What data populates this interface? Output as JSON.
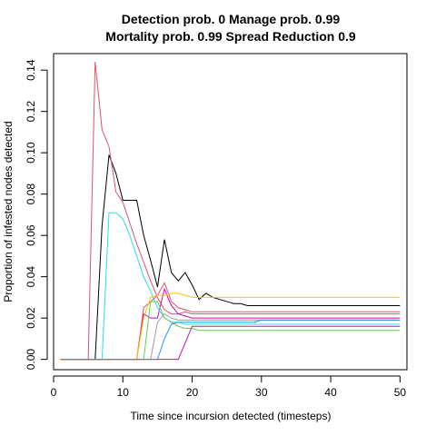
{
  "chart_data": {
    "type": "line",
    "title_lines": [
      "Detection prob. 0 Manage prob. 0.99",
      "Mortality prob. 0.99 Spread Reduction 0.9"
    ],
    "xlabel": "Time since incursion detected (timesteps)",
    "ylabel": "Proportion of infested nodes detected",
    "xlim": [
      0,
      51
    ],
    "ylim": [
      -0.005,
      0.148
    ],
    "xticks": [
      0,
      10,
      20,
      30,
      40,
      50
    ],
    "yticks": [
      0.0,
      0.02,
      0.04,
      0.06,
      0.08,
      0.1,
      0.12,
      0.14
    ],
    "ytick_labels": [
      "0.00",
      "0.02",
      "0.04",
      "0.06",
      "0.08",
      "0.10",
      "0.12",
      "0.14"
    ],
    "grid": false,
    "legend": "none",
    "series": [
      {
        "color": "#000000",
        "x": [
          1,
          6,
          7,
          8,
          9,
          10,
          11,
          12,
          13,
          14,
          15,
          16,
          17,
          18,
          19,
          20,
          21,
          22,
          23,
          24,
          25,
          26,
          27,
          28,
          29,
          30,
          50
        ],
        "y": [
          0,
          0,
          0.065,
          0.099,
          0.09,
          0.077,
          0.077,
          0.077,
          0.06,
          0.048,
          0.035,
          0.058,
          0.042,
          0.038,
          0.042,
          0.036,
          0.029,
          0.032,
          0.03,
          0.029,
          0.028,
          0.027,
          0.027,
          0.026,
          0.026,
          0.026,
          0.026
        ]
      },
      {
        "color": "#DF536B",
        "x": [
          1,
          5,
          6,
          7,
          8,
          9,
          10,
          11,
          12,
          13,
          14,
          15,
          16,
          17,
          18,
          19,
          20,
          21,
          22,
          23,
          24,
          25,
          26,
          50
        ],
        "y": [
          0,
          0,
          0.144,
          0.111,
          0.103,
          0.081,
          0.076,
          0.066,
          0.056,
          0.047,
          0.038,
          0.03,
          0.024,
          0.022,
          0.022,
          0.023,
          0.022,
          0.022,
          0.022,
          0.022,
          0.022,
          0.022,
          0.022,
          0.022
        ]
      },
      {
        "color": "#CD0BBC",
        "x": [
          1,
          12,
          13,
          14,
          15,
          16,
          17,
          18,
          19,
          20,
          21,
          50
        ],
        "y": [
          0,
          0,
          0.022,
          0.02,
          0.02,
          0.034,
          0.026,
          0.022,
          0.021,
          0.02,
          0.02,
          0.02
        ]
      },
      {
        "color": "#28E2E5",
        "x": [
          1,
          7,
          8,
          9,
          10,
          11,
          12,
          13,
          14,
          15,
          16,
          17,
          18,
          19,
          20,
          50
        ],
        "y": [
          0,
          0,
          0.071,
          0.071,
          0.068,
          0.06,
          0.05,
          0.04,
          0.033,
          0.025,
          0.02,
          0.018,
          0.018,
          0.017,
          0.017,
          0.017
        ]
      },
      {
        "color": "#DF536B",
        "x": [
          1,
          12,
          13,
          14,
          15,
          16,
          17,
          18,
          19,
          20,
          50
        ],
        "y": [
          0,
          0,
          0.025,
          0.028,
          0.031,
          0.037,
          0.028,
          0.025,
          0.024,
          0.023,
          0.023
        ]
      },
      {
        "color": "#F5C710",
        "x": [
          1,
          12,
          13,
          14,
          15,
          16,
          17,
          18,
          19,
          20,
          21,
          50
        ],
        "y": [
          0,
          0,
          0.02,
          0.03,
          0.031,
          0.031,
          0.032,
          0.032,
          0.031,
          0.03,
          0.03,
          0.03
        ]
      },
      {
        "color": "#61D04F",
        "x": [
          1,
          13,
          14,
          15,
          16,
          17,
          18,
          19,
          20,
          21,
          22,
          50
        ],
        "y": [
          0,
          0,
          0.028,
          0.028,
          0.02,
          0.018,
          0.016,
          0.015,
          0.015,
          0.014,
          0.014,
          0.014
        ]
      },
      {
        "color": "#CD0BBC",
        "x": [
          1,
          18,
          20,
          50
        ],
        "y": [
          0,
          0,
          0.016,
          0.016
        ]
      },
      {
        "color": "#9E9E9E",
        "x": [
          1,
          14,
          15,
          16,
          17,
          18,
          19,
          20,
          50
        ],
        "y": [
          0,
          0,
          0.018,
          0.022,
          0.02,
          0.019,
          0.019,
          0.019,
          0.019
        ]
      },
      {
        "color": "#2297E6",
        "x": [
          1,
          15,
          16,
          17,
          18,
          19,
          20,
          21,
          22,
          23,
          24,
          25,
          26,
          27,
          28,
          29,
          30,
          31,
          32,
          50
        ],
        "y": [
          0,
          0,
          0.01,
          0.017,
          0.018,
          0.018,
          0.018,
          0.018,
          0.018,
          0.018,
          0.018,
          0.018,
          0.018,
          0.018,
          0.018,
          0.018,
          0.019,
          0.019,
          0.019,
          0.019
        ]
      }
    ]
  }
}
